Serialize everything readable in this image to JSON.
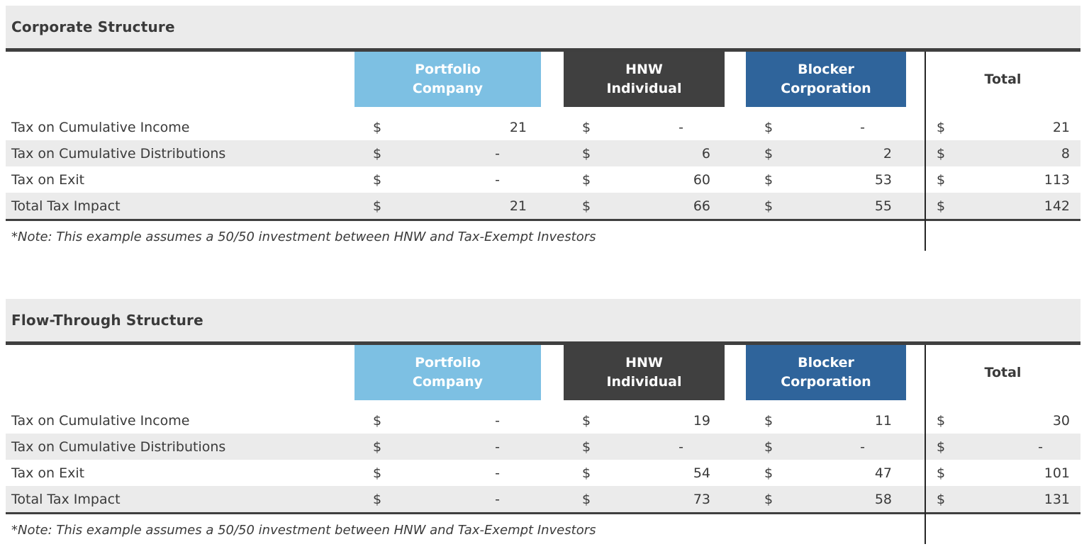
{
  "colors": {
    "band_gray": "#ebebeb",
    "alt_row_gray": "#ebebeb",
    "rule_dark": "#3f3f3f",
    "divider_black": "#262626",
    "text_dark": "#3a3a3a",
    "portfolio_blue": "#7dc0e3",
    "hnw_charcoal": "#404040",
    "blocker_blue": "#2f649b",
    "header_text_white": "#ffffff"
  },
  "tables": [
    {
      "title": "Corporate Structure",
      "currency": "$",
      "columns": [
        {
          "label": "Portfolio\nCompany",
          "bg": "#7dc0e3",
          "text_color": "#ffffff"
        },
        {
          "label": "HNW\nIndividual",
          "bg": "#404040",
          "text_color": "#ffffff"
        },
        {
          "label": "Blocker\nCorporation",
          "bg": "#2f649b",
          "text_color": "#ffffff"
        },
        {
          "label": "Total",
          "bg": "",
          "text_color": "#3a3a3a"
        }
      ],
      "rows": [
        {
          "label": "Tax on Cumulative Income",
          "values": [
            "21",
            "-",
            "-",
            "21"
          ]
        },
        {
          "label": "Tax on Cumulative Distributions",
          "values": [
            "-",
            "6",
            "2",
            "8"
          ]
        },
        {
          "label": "Tax on Exit",
          "values": [
            "-",
            "60",
            "53",
            "113"
          ]
        },
        {
          "label": "Total Tax Impact",
          "values": [
            "21",
            "66",
            "55",
            "142"
          ]
        }
      ],
      "note": "*Note: This example assumes a 50/50 investment between HNW and Tax-Exempt Investors"
    },
    {
      "title": "Flow-Through Structure",
      "currency": "$",
      "columns": [
        {
          "label": "Portfolio\nCompany",
          "bg": "#7dc0e3",
          "text_color": "#ffffff"
        },
        {
          "label": "HNW\nIndividual",
          "bg": "#404040",
          "text_color": "#ffffff"
        },
        {
          "label": "Blocker\nCorporation",
          "bg": "#2f649b",
          "text_color": "#ffffff"
        },
        {
          "label": "Total",
          "bg": "",
          "text_color": "#3a3a3a"
        }
      ],
      "rows": [
        {
          "label": "Tax on Cumulative Income",
          "values": [
            "-",
            "19",
            "11",
            "30"
          ]
        },
        {
          "label": "Tax on Cumulative Distributions",
          "values": [
            "-",
            "-",
            "-",
            "-"
          ]
        },
        {
          "label": "Tax on Exit",
          "values": [
            "-",
            "54",
            "47",
            "101"
          ]
        },
        {
          "label": "Total Tax Impact",
          "values": [
            "-",
            "73",
            "58",
            "131"
          ]
        }
      ],
      "note": "*Note: This example assumes a 50/50 investment between HNW and Tax-Exempt Investors"
    }
  ]
}
